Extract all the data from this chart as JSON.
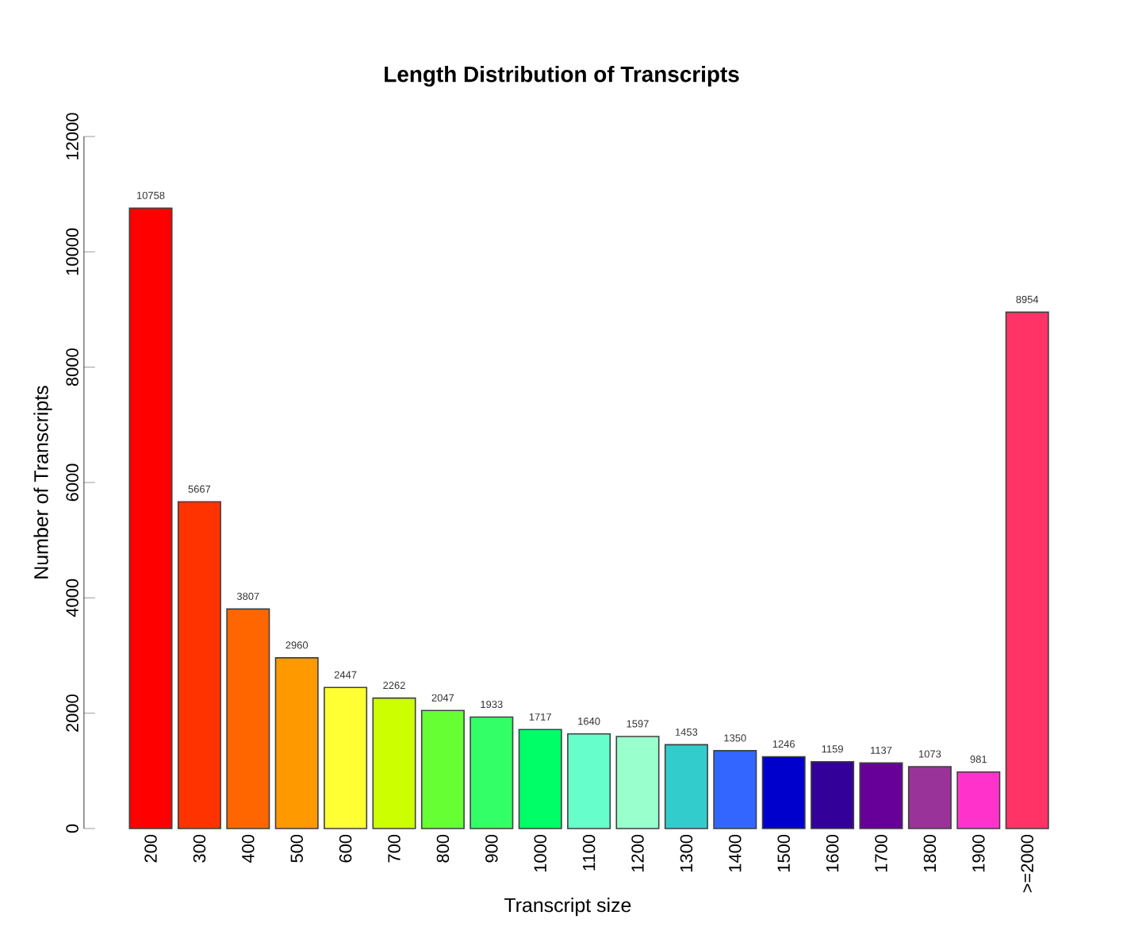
{
  "chart_data": {
    "type": "bar",
    "title": "Length Distribution of Transcripts",
    "xlabel": "Transcript size",
    "ylabel": "Number of Transcripts",
    "categories": [
      "200",
      "300",
      "400",
      "500",
      "600",
      "700",
      "800",
      "900",
      "1000",
      "1100",
      "1200",
      "1300",
      "1400",
      "1500",
      "1600",
      "1700",
      "1800",
      "1900",
      ">=2000"
    ],
    "values": [
      10758,
      5667,
      3807,
      2960,
      2447,
      2262,
      2047,
      1933,
      1717,
      1640,
      1597,
      1453,
      1350,
      1246,
      1159,
      1137,
      1073,
      981,
      8954
    ],
    "colors": [
      "#ff0000",
      "#ff3300",
      "#ff6600",
      "#ff9900",
      "#ffff33",
      "#ccff00",
      "#66ff33",
      "#33ff66",
      "#00ff66",
      "#66ffcc",
      "#99ffcc",
      "#33cccc",
      "#3366ff",
      "#0000cc",
      "#330099",
      "#660099",
      "#993399",
      "#ff33cc",
      "#ff3366"
    ],
    "ylim": [
      0,
      12000
    ],
    "yticks": [
      0,
      2000,
      4000,
      6000,
      8000,
      10000,
      12000
    ],
    "data_labels": true
  }
}
